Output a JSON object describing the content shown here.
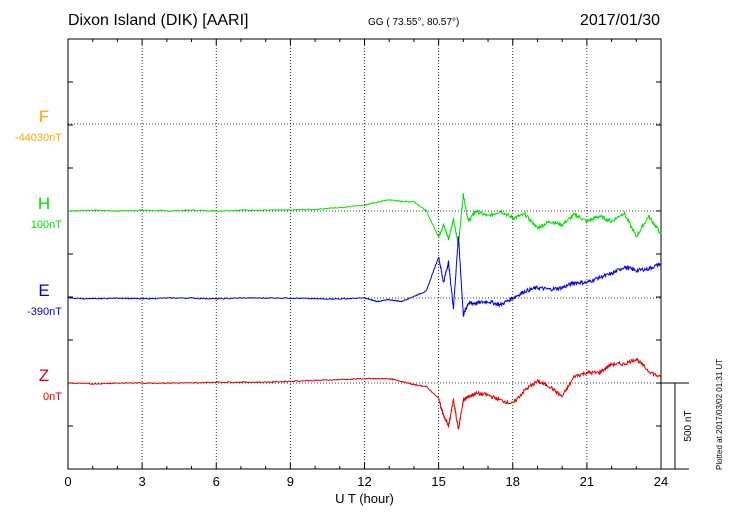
{
  "header": {
    "station": "Dixon Island (DIK)  [AARI]",
    "coords": "GG ( 73.55°,  80.57°)",
    "date": "2017/01/30"
  },
  "plotted_note": "Plotted at 2017/03/02 01:31  UT",
  "colors": {
    "F": "#ffa500",
    "H": "#00dd00",
    "E": "#0000dd",
    "Z": "#dd0000"
  },
  "chart_data": {
    "type": "line",
    "xlabel": "U T (hour)",
    "xlim": [
      0,
      24
    ],
    "xticks": [
      "0",
      "3",
      "6",
      "9",
      "12",
      "15",
      "18",
      "21",
      "24"
    ],
    "scale_bar_label": "500 nT",
    "scale_bar_nT": 500,
    "series": [
      {
        "name": "F",
        "baseline_label": "-44030nT",
        "color": "#ffa500",
        "x": [],
        "y": []
      },
      {
        "name": "H",
        "baseline_label": "100nT",
        "color": "#00dd00",
        "x": [
          0,
          1,
          2,
          3,
          4,
          5,
          6,
          7,
          8,
          9,
          10,
          11,
          12,
          12.5,
          13,
          13.5,
          14,
          14.5,
          15,
          15.2,
          15.4,
          15.6,
          15.8,
          16,
          16.2,
          16.5,
          17,
          17.5,
          18,
          18.5,
          19,
          19.5,
          20,
          20.5,
          21,
          21.5,
          22,
          22.5,
          23,
          23.5,
          24
        ],
        "y": [
          0,
          5,
          0,
          5,
          0,
          5,
          0,
          5,
          5,
          5,
          10,
          20,
          35,
          50,
          65,
          55,
          55,
          0,
          -150,
          -80,
          -160,
          -50,
          -200,
          100,
          -60,
          0,
          -30,
          0,
          -40,
          -20,
          -100,
          -60,
          -80,
          -20,
          -60,
          -30,
          -60,
          -10,
          -150,
          -30,
          -130
        ]
      },
      {
        "name": "E",
        "baseline_label": "-390nT",
        "color": "#0000dd",
        "x": [
          0,
          1,
          2,
          3,
          4,
          5,
          6,
          7,
          8,
          9,
          10,
          11,
          12,
          12.5,
          13,
          13.5,
          14,
          14.5,
          15,
          15.2,
          15.4,
          15.6,
          15.8,
          16,
          16.2,
          16.5,
          17,
          17.5,
          18,
          18.5,
          19,
          19.5,
          20,
          20.5,
          21,
          21.5,
          22,
          22.5,
          23,
          23.5,
          24
        ],
        "y": [
          0,
          -5,
          0,
          -5,
          0,
          0,
          -5,
          0,
          0,
          0,
          -5,
          -5,
          0,
          -20,
          -10,
          -20,
          10,
          40,
          240,
          90,
          210,
          -60,
          360,
          -100,
          -30,
          -30,
          -20,
          -40,
          0,
          40,
          60,
          50,
          60,
          90,
          90,
          120,
          140,
          180,
          160,
          170,
          200
        ]
      },
      {
        "name": "Z",
        "baseline_label": "0nT",
        "color": "#dd0000",
        "x": [
          0,
          1,
          2,
          3,
          4,
          5,
          6,
          7,
          8,
          9,
          10,
          11,
          12,
          12.5,
          13,
          13.5,
          14,
          14.5,
          15,
          15.2,
          15.4,
          15.6,
          15.8,
          16,
          16.2,
          16.5,
          17,
          17.5,
          18,
          18.5,
          19,
          19.5,
          20,
          20.5,
          21,
          21.5,
          22,
          22.5,
          23,
          23.5,
          24
        ],
        "y": [
          0,
          -5,
          0,
          0,
          0,
          0,
          5,
          5,
          5,
          10,
          15,
          20,
          25,
          25,
          25,
          10,
          -10,
          -20,
          -90,
          -190,
          -250,
          -100,
          -270,
          -100,
          -80,
          -60,
          -70,
          -100,
          -120,
          -40,
          10,
          -20,
          -80,
          40,
          60,
          60,
          110,
          110,
          140,
          70,
          30
        ]
      }
    ]
  }
}
